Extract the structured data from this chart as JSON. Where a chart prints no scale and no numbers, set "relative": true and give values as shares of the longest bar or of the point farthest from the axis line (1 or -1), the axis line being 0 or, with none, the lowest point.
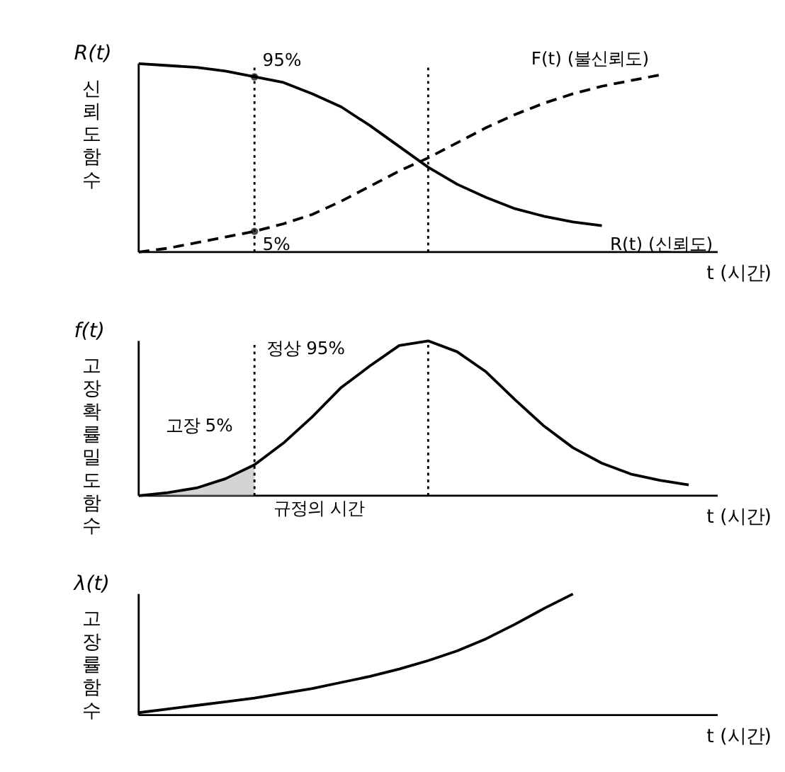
{
  "chart_data": [
    {
      "type": "line",
      "relative": true,
      "ylabel": "R(t)",
      "xlabel": "t (시간)",
      "categories": [
        null,
        null,
        null,
        null,
        null,
        null,
        null,
        null,
        null,
        null,
        null,
        null,
        null,
        null,
        null,
        null,
        null,
        null,
        null,
        null,
        null
      ],
      "series": [
        {
          "name": "R(t) (신뢰도)",
          "color": "#000000",
          "line_style": "solid",
          "values": [
            1.0,
            0.99,
            0.98,
            0.96,
            0.93,
            0.9,
            0.84,
            0.77,
            0.67,
            0.56,
            0.45,
            0.36,
            0.29,
            0.23,
            0.19,
            0.16,
            0.14,
            null,
            null,
            null,
            null
          ]
        },
        {
          "name": "F(t) (불신뢰도)",
          "color": "#000000",
          "line_style": "dashed",
          "values": [
            0.0,
            0.02,
            0.05,
            0.08,
            0.11,
            0.15,
            0.2,
            0.27,
            0.35,
            0.43,
            0.5,
            0.58,
            0.66,
            0.73,
            0.79,
            0.84,
            0.88,
            0.91,
            0.94,
            null,
            null
          ]
        }
      ],
      "annotations": [
        "신뢰도함수",
        "95%",
        "5%"
      ]
    },
    {
      "type": "line",
      "relative": true,
      "ylabel": "f(t)",
      "xlabel": "t (시간)",
      "categories": [
        null,
        null,
        null,
        null,
        null,
        null,
        null,
        null,
        null,
        null,
        null,
        null,
        null,
        null,
        null,
        null,
        null,
        null,
        null,
        null,
        null
      ],
      "series": [
        {
          "type": "area",
          "color": "#aaaaaa",
          "values": [
            0.0,
            0.02,
            0.05,
            0.11,
            0.2,
            null,
            null,
            null,
            null,
            null,
            null,
            null,
            null,
            null,
            null,
            null,
            null,
            null,
            null,
            null,
            null
          ]
        },
        {
          "color": "#000000",
          "line_style": "solid",
          "values": [
            0.0,
            0.02,
            0.05,
            0.11,
            0.2,
            0.34,
            0.51,
            0.7,
            0.84,
            0.97,
            1.0,
            0.93,
            0.8,
            0.62,
            0.45,
            0.31,
            0.21,
            0.14,
            0.1,
            0.07,
            null
          ]
        }
      ],
      "annotations": [
        "고장확률밀도함수",
        "고장 5%",
        "정상 95%",
        "규정의 시간"
      ]
    },
    {
      "type": "line",
      "relative": true,
      "ylabel": "λ(t)",
      "xlabel": "t (시간)",
      "categories": [
        null,
        null,
        null,
        null,
        null,
        null,
        null,
        null,
        null,
        null,
        null,
        null,
        null,
        null,
        null,
        null,
        null,
        null,
        null,
        null,
        null
      ],
      "series": [
        {
          "color": "#000000",
          "line_style": "solid",
          "values": [
            0.02,
            0.05,
            0.08,
            0.11,
            0.14,
            0.18,
            0.22,
            0.27,
            0.32,
            0.38,
            0.45,
            0.53,
            0.63,
            0.75,
            0.88,
            1.0,
            null,
            null,
            null,
            null,
            null
          ]
        }
      ],
      "annotations": [
        "고장률함수"
      ]
    }
  ]
}
